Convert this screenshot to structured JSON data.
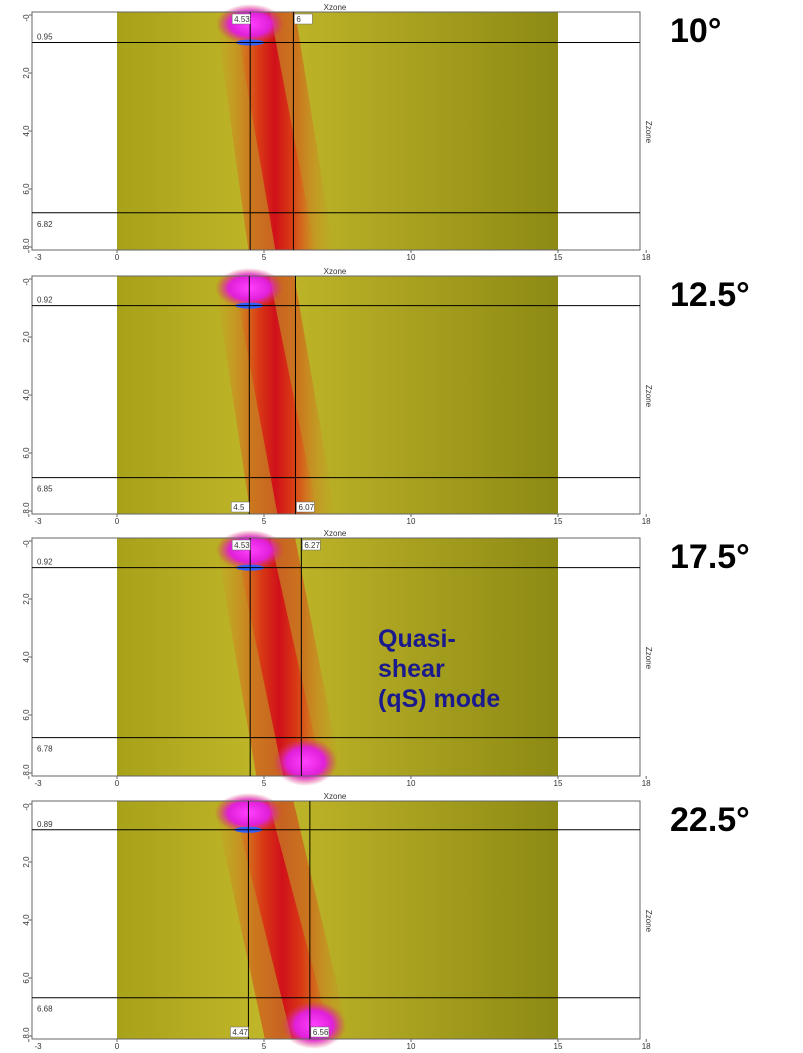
{
  "axes": {
    "x_title": "Xzone",
    "y_title": "Zzone",
    "xticks": [
      -3,
      0,
      5,
      10,
      15,
      18
    ],
    "yticks": [
      {
        "value": 0,
        "label": "-0"
      },
      {
        "value": 2,
        "label": "2.0"
      },
      {
        "value": 4,
        "label": "4.0"
      },
      {
        "value": 6,
        "label": "6.0"
      },
      {
        "value": 8,
        "label": "8.0"
      }
    ]
  },
  "panels": [
    {
      "angle": "10°",
      "x_cursors": [
        4.53,
        6
      ],
      "z_cursors": [
        0.95,
        6.82
      ]
    },
    {
      "angle": "12.5°",
      "x_cursors": [
        4.5,
        6.07
      ],
      "z_cursors": [
        0.92,
        6.85
      ]
    },
    {
      "angle": "17.5°",
      "x_cursors": [
        4.53,
        6.27
      ],
      "z_cursors": [
        0.92,
        6.78
      ]
    },
    {
      "angle": "22.5°",
      "x_cursors": [
        4.47,
        6.56
      ],
      "z_cursors": [
        0.89,
        6.68
      ]
    }
  ],
  "annotation": {
    "lines": [
      "Quasi-",
      "shear",
      "(qS) mode"
    ]
  }
}
